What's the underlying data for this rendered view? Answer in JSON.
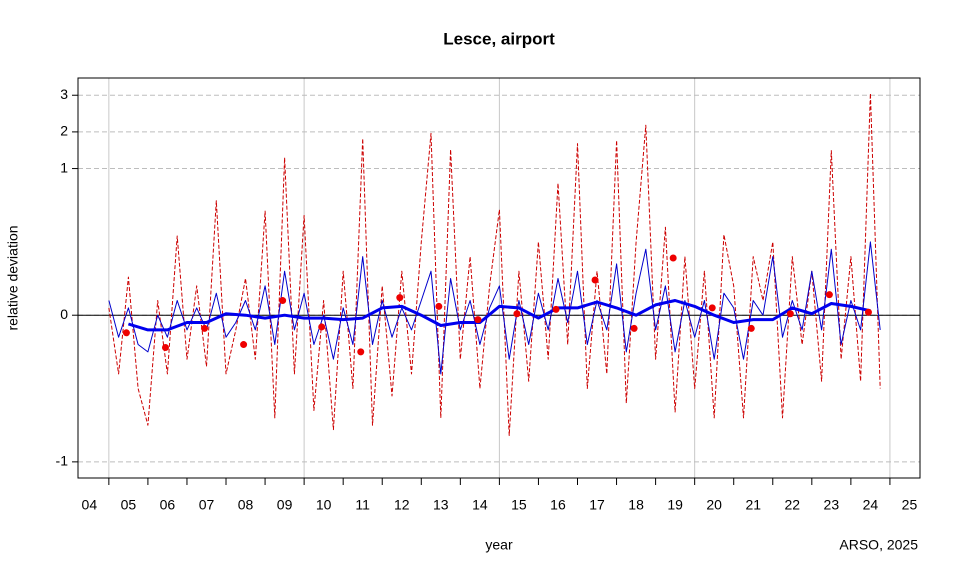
{
  "chart_data": {
    "type": "line",
    "title": "Lesce, airport",
    "xlabel": "year",
    "ylabel": "relative deviation",
    "caption": "ARSO, 2025",
    "xlim": [
      2004.21,
      2025.77
    ],
    "ylim": [
      -1.11,
      3.47
    ],
    "y_compressed_above": 1,
    "y_compression": 0.25,
    "yticks": [
      -1,
      0,
      1,
      2,
      3
    ],
    "y_reference_line": 0,
    "grid": true,
    "xgrid": [
      2005,
      2010,
      2015,
      2020,
      2025
    ],
    "xticks": [
      {
        "value": 2004.5,
        "label": "04"
      },
      {
        "value": 2005.5,
        "label": "05"
      },
      {
        "value": 2006.5,
        "label": "06"
      },
      {
        "value": 2007.5,
        "label": "07"
      },
      {
        "value": 2008.5,
        "label": "08"
      },
      {
        "value": 2009.5,
        "label": "09"
      },
      {
        "value": 2010.5,
        "label": "10"
      },
      {
        "value": 2011.5,
        "label": "11"
      },
      {
        "value": 2012.5,
        "label": "12"
      },
      {
        "value": 2013.5,
        "label": "13"
      },
      {
        "value": 2014.5,
        "label": "14"
      },
      {
        "value": 2015.5,
        "label": "15"
      },
      {
        "value": 2016.5,
        "label": "16"
      },
      {
        "value": 2017.5,
        "label": "17"
      },
      {
        "value": 2018.5,
        "label": "18"
      },
      {
        "value": 2019.5,
        "label": "19"
      },
      {
        "value": 2020.5,
        "label": "20"
      },
      {
        "value": 2021.5,
        "label": "21"
      },
      {
        "value": 2022.5,
        "label": "22"
      },
      {
        "value": 2023.5,
        "label": "23"
      },
      {
        "value": 2024.5,
        "label": "24"
      },
      {
        "value": 2025.5,
        "label": "25"
      }
    ],
    "series": [
      {
        "style": "dashed",
        "color": "#cc0000",
        "width": 1,
        "x": [
          2005,
          2005.25,
          2005.5,
          2005.75,
          2006,
          2006.25,
          2006.5,
          2006.75,
          2007,
          2007.25,
          2007.5,
          2007.75,
          2008,
          2008.25,
          2008.5,
          2008.75,
          2009,
          2009.25,
          2009.5,
          2009.75,
          2010,
          2010.25,
          2010.5,
          2010.75,
          2011,
          2011.25,
          2011.5,
          2011.75,
          2012,
          2012.25,
          2012.5,
          2012.75,
          2013,
          2013.25,
          2013.5,
          2013.75,
          2014,
          2014.25,
          2014.5,
          2014.75,
          2015,
          2015.25,
          2015.5,
          2015.75,
          2016,
          2016.25,
          2016.5,
          2016.75,
          2017,
          2017.25,
          2017.5,
          2017.75,
          2018,
          2018.25,
          2018.5,
          2018.75,
          2019,
          2019.25,
          2019.5,
          2019.75,
          2020,
          2020.25,
          2020.5,
          2020.75,
          2021,
          2021.25,
          2021.5,
          2021.75,
          2022,
          2022.25,
          2022.5,
          2022.75,
          2023,
          2023.25,
          2023.5,
          2023.75,
          2024,
          2024.25,
          2024.5,
          2024.75
        ],
        "values": [
          0.05,
          -0.4,
          0.26,
          -0.5,
          -0.75,
          0.1,
          -0.4,
          0.54,
          -0.3,
          0.2,
          -0.35,
          0.78,
          -0.4,
          -0.1,
          0.25,
          -0.3,
          0.71,
          -0.7,
          1.3,
          -0.4,
          0.68,
          -0.65,
          0.1,
          -0.78,
          0.3,
          -0.5,
          1.82,
          -0.75,
          0.2,
          -0.55,
          0.3,
          -0.4,
          0.5,
          1.96,
          -0.7,
          1.52,
          -0.3,
          0.4,
          -0.5,
          0.2,
          0.72,
          -0.82,
          0.3,
          -0.45,
          0.5,
          -0.3,
          0.9,
          -0.2,
          1.68,
          -0.5,
          0.3,
          -0.4,
          1.77,
          -0.6,
          0.5,
          2.18,
          -0.3,
          0.6,
          -0.66,
          0.4,
          -0.5,
          0.3,
          -0.7,
          0.55,
          0.2,
          -0.7,
          0.4,
          0.1,
          0.5,
          -0.7,
          0.4,
          -0.2,
          0.3,
          -0.45,
          1.49,
          -0.3,
          0.4,
          -0.45,
          3.05,
          -0.5
        ]
      },
      {
        "style": "solid",
        "color": "#0000cc",
        "width": 1,
        "x": [
          2005,
          2005.25,
          2005.5,
          2005.75,
          2006,
          2006.25,
          2006.5,
          2006.75,
          2007,
          2007.25,
          2007.5,
          2007.75,
          2008,
          2008.25,
          2008.5,
          2008.75,
          2009,
          2009.25,
          2009.5,
          2009.75,
          2010,
          2010.25,
          2010.5,
          2010.75,
          2011,
          2011.25,
          2011.5,
          2011.75,
          2012,
          2012.25,
          2012.5,
          2012.75,
          2013,
          2013.25,
          2013.5,
          2013.75,
          2014,
          2014.25,
          2014.5,
          2014.75,
          2015,
          2015.25,
          2015.5,
          2015.75,
          2016,
          2016.25,
          2016.5,
          2016.75,
          2017,
          2017.25,
          2017.5,
          2017.75,
          2018,
          2018.25,
          2018.5,
          2018.75,
          2019,
          2019.25,
          2019.5,
          2019.75,
          2020,
          2020.25,
          2020.5,
          2020.75,
          2021,
          2021.25,
          2021.5,
          2021.75,
          2022,
          2022.25,
          2022.5,
          2022.75,
          2023,
          2023.25,
          2023.5,
          2023.75,
          2024,
          2024.25,
          2024.5,
          2024.75
        ],
        "values": [
          0.1,
          -0.15,
          0.05,
          -0.2,
          -0.25,
          0.0,
          -0.15,
          0.1,
          -0.1,
          0.05,
          -0.1,
          0.15,
          -0.15,
          -0.05,
          0.1,
          -0.1,
          0.2,
          -0.2,
          0.3,
          -0.1,
          0.15,
          -0.2,
          0.0,
          -0.3,
          0.05,
          -0.2,
          0.4,
          -0.2,
          0.1,
          -0.15,
          0.05,
          -0.1,
          0.1,
          0.3,
          -0.4,
          0.25,
          -0.1,
          0.1,
          -0.2,
          0.05,
          0.2,
          -0.3,
          0.1,
          -0.2,
          0.15,
          -0.1,
          0.25,
          -0.05,
          0.3,
          -0.2,
          0.1,
          -0.1,
          0.35,
          -0.25,
          0.15,
          0.45,
          -0.1,
          0.2,
          -0.25,
          0.1,
          -0.15,
          0.1,
          -0.3,
          0.15,
          0.05,
          -0.3,
          0.1,
          0.0,
          0.4,
          -0.15,
          0.1,
          -0.1,
          0.3,
          -0.1,
          0.45,
          -0.2,
          0.1,
          -0.1,
          0.5,
          -0.1
        ]
      },
      {
        "style": "solid",
        "color": "#0000ee",
        "width": 3,
        "x": [
          2005.5,
          2006,
          2006.5,
          2007,
          2007.5,
          2008,
          2008.5,
          2009,
          2009.5,
          2010,
          2010.5,
          2011,
          2011.5,
          2012,
          2012.5,
          2013,
          2013.5,
          2014,
          2014.5,
          2015,
          2015.5,
          2016,
          2016.5,
          2017,
          2017.5,
          2018,
          2018.5,
          2019,
          2019.5,
          2020,
          2020.5,
          2021,
          2021.5,
          2022,
          2022.5,
          2023,
          2023.5,
          2024,
          2024.5
        ],
        "values": [
          -0.06,
          -0.1,
          -0.1,
          -0.05,
          -0.05,
          0.01,
          0.0,
          -0.02,
          0.0,
          -0.02,
          -0.02,
          -0.03,
          -0.02,
          0.05,
          0.06,
          0.0,
          -0.07,
          -0.05,
          -0.05,
          0.06,
          0.05,
          -0.02,
          0.05,
          0.05,
          0.09,
          0.05,
          0.0,
          0.07,
          0.1,
          0.06,
          0.0,
          -0.05,
          -0.03,
          -0.03,
          0.05,
          0.01,
          0.08,
          0.06,
          0.03
        ]
      },
      {
        "style": "points",
        "color": "#ee0000",
        "x": [
          2005.45,
          2006.45,
          2007.45,
          2008.45,
          2009.45,
          2010.45,
          2011.45,
          2012.45,
          2013.45,
          2014.45,
          2015.45,
          2016.45,
          2017.45,
          2018.45,
          2019.45,
          2020.45,
          2021.45,
          2022.45,
          2023.45,
          2024.45
        ],
        "values": [
          -0.12,
          -0.22,
          -0.09,
          -0.2,
          0.1,
          -0.08,
          -0.25,
          0.12,
          0.06,
          -0.03,
          0.01,
          0.04,
          0.24,
          -0.09,
          0.39,
          0.05,
          -0.09,
          0.01,
          0.14,
          0.02
        ]
      }
    ]
  }
}
